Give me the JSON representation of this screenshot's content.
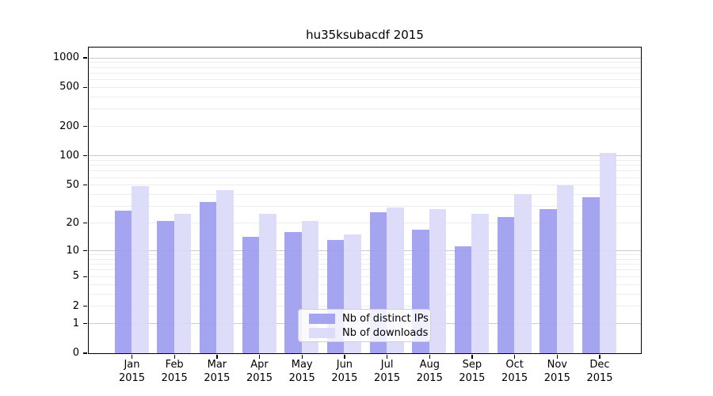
{
  "figure": {
    "background": "#ffffff"
  },
  "chart_data": {
    "type": "bar",
    "title": "hu35ksubacdf 2015",
    "categories": [
      "Jan 2015",
      "Feb 2015",
      "Mar 2015",
      "Apr 2015",
      "May 2015",
      "Jun 2015",
      "Jul 2015",
      "Aug 2015",
      "Sep 2015",
      "Oct 2015",
      "Nov 2015",
      "Dec 2015"
    ],
    "series": [
      {
        "name": "Nb of distinct IPs",
        "color": "#9a9aef",
        "values": [
          27,
          21,
          33,
          14,
          16,
          13,
          26,
          17,
          11,
          23,
          28,
          37
        ]
      },
      {
        "name": "Nb of downloads",
        "color": "#d9d9f8",
        "values": [
          48,
          25,
          44,
          25,
          21,
          15,
          29,
          28,
          25,
          40,
          49,
          106
        ]
      }
    ],
    "xlabel": "",
    "ylabel": "",
    "scale": "log10(1+y)",
    "ylim": [
      0,
      1274
    ],
    "yticks": [
      0,
      1,
      2,
      5,
      10,
      20,
      50,
      100,
      200,
      500,
      1000
    ],
    "major_gridlines": [
      1,
      10,
      100,
      1000
    ],
    "minor_gridline_steps": [
      2,
      3,
      4,
      5,
      6,
      7,
      8,
      9
    ],
    "grid": true,
    "legend_position": "lower center",
    "grid_major_color": "#cbcbcb",
    "grid_minor_color": "#ededed",
    "axis_color": "#000000"
  }
}
